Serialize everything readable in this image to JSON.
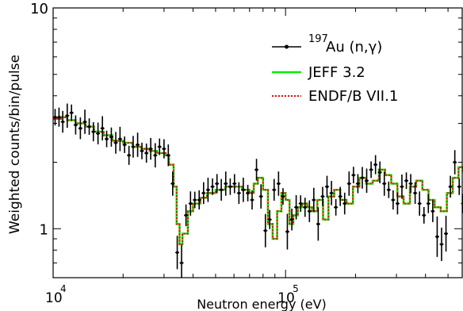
{
  "chart_data": {
    "type": "line",
    "title": "",
    "xlabel": "Neutron energy (eV)",
    "ylabel": "Weighted counts/bin/pulse",
    "x_scale": "log",
    "y_scale": "log",
    "xlim": [
      10000,
      580000
    ],
    "ylim": [
      0.6,
      10
    ],
    "x_tick_labels": [
      {
        "value": 10000,
        "base": "10",
        "exp": "4"
      },
      {
        "value": 100000,
        "base": "10",
        "exp": "5"
      }
    ],
    "y_tick_labels": [
      {
        "value": 1,
        "label": "1"
      },
      {
        "value": 10,
        "label": "10"
      }
    ],
    "legend": {
      "position": "top-right",
      "entries": [
        {
          "label_sup": "197",
          "label": "Au (n,γ)"
        },
        {
          "label": "JEFF 3.2"
        },
        {
          "label": "ENDF/B VII.1"
        }
      ]
    },
    "colors": {
      "data": "#000000",
      "jeff": "#00ee00",
      "endf": "#ff0000"
    },
    "series": [
      {
        "name": "197Au (n,γ)",
        "style": "points-with-error-bars",
        "x": [
          10200,
          10600,
          11000,
          11500,
          12000,
          12500,
          13100,
          13700,
          14300,
          14900,
          15600,
          16300,
          17000,
          17800,
          18600,
          19400,
          20300,
          21200,
          22100,
          23100,
          24100,
          25200,
          26300,
          27500,
          28700,
          30000,
          31300,
          32700,
          34200,
          35700,
          37300,
          39000,
          40700,
          42500,
          44400,
          46400,
          48500,
          50700,
          52900,
          55300,
          57800,
          60300,
          63000,
          65800,
          68800,
          71800,
          75000,
          78400,
          81900,
          85500,
          89300,
          93300,
          97500,
          101800,
          106400,
          111100,
          116100,
          121300,
          126700,
          132300,
          138200,
          144400,
          150800,
          157600,
          164600,
          171900,
          179600,
          187600,
          196000,
          204700,
          213900,
          223400,
          233400,
          243800,
          254600,
          266000,
          277900,
          290300,
          303200,
          316700,
          330900,
          345600,
          361000,
          377100,
          394000,
          411500,
          429900,
          449100,
          469100,
          490100,
          511900,
          534800,
          558600,
          580000
        ],
        "y": [
          3.2,
          3.2,
          3.05,
          3.25,
          3.35,
          2.95,
          2.85,
          3.05,
          2.9,
          2.75,
          2.7,
          2.85,
          2.55,
          2.6,
          2.45,
          2.55,
          2.4,
          2.15,
          2.35,
          2.4,
          2.25,
          2.2,
          2.3,
          2.15,
          2.35,
          2.3,
          2.15,
          1.6,
          0.78,
          0.7,
          1.15,
          1.3,
          1.35,
          1.35,
          1.45,
          1.5,
          1.55,
          1.6,
          1.5,
          1.6,
          1.55,
          1.6,
          1.45,
          1.5,
          1.45,
          1.35,
          1.85,
          1.4,
          0.98,
          1.1,
          1.5,
          1.6,
          1.4,
          0.97,
          1.1,
          1.25,
          1.3,
          1.25,
          1.2,
          1.35,
          1.05,
          1.4,
          1.55,
          1.45,
          1.25,
          1.4,
          1.3,
          1.6,
          1.75,
          1.6,
          1.7,
          1.65,
          1.85,
          1.95,
          1.8,
          1.6,
          1.5,
          1.35,
          1.3,
          1.55,
          1.65,
          1.6,
          1.45,
          1.3,
          1.15,
          1.3,
          1.2,
          0.92,
          0.85,
          0.95,
          1.55,
          2.0,
          1.55,
          1.3
        ]
      },
      {
        "name": "JEFF 3.2",
        "style": "step",
        "x": [
          10000,
          10800,
          11500,
          12500,
          13800,
          15000,
          16500,
          18000,
          20000,
          22000,
          24000,
          26000,
          28000,
          30500,
          31500,
          33000,
          34000,
          35000,
          36000,
          38000,
          40000,
          43000,
          46000,
          50000,
          55000,
          60000,
          65000,
          70000,
          73000,
          76000,
          80000,
          84000,
          88000,
          92000,
          96000,
          100000,
          104000,
          108000,
          113000,
          118000,
          124000,
          130000,
          137000,
          145000,
          153000,
          162000,
          172000,
          183000,
          195000,
          208000,
          222000,
          237000,
          252000,
          268000,
          285000,
          303000,
          322000,
          343000,
          365000,
          388000,
          412000,
          438000,
          465000,
          494000,
          524000,
          555000,
          580000
        ],
        "y": [
          3.15,
          3.2,
          3.1,
          3.0,
          2.9,
          2.75,
          2.65,
          2.5,
          2.45,
          2.35,
          2.3,
          2.25,
          2.2,
          2.15,
          1.95,
          1.55,
          1.05,
          0.85,
          0.95,
          1.2,
          1.3,
          1.38,
          1.45,
          1.5,
          1.55,
          1.55,
          1.5,
          1.45,
          1.6,
          1.7,
          1.5,
          1.05,
          0.9,
          1.2,
          1.45,
          1.35,
          1.05,
          1.15,
          1.25,
          1.3,
          1.25,
          1.2,
          1.35,
          1.1,
          1.4,
          1.5,
          1.35,
          1.3,
          1.55,
          1.7,
          1.6,
          1.65,
          1.85,
          1.75,
          1.6,
          1.4,
          1.3,
          1.55,
          1.65,
          1.5,
          1.35,
          1.25,
          1.2,
          1.45,
          1.7,
          1.9,
          1.8
        ]
      },
      {
        "name": "ENDF/B VII.1",
        "style": "dotted-step",
        "x": [
          10000,
          10800,
          11500,
          12500,
          13800,
          15000,
          16500,
          18000,
          20000,
          22000,
          24000,
          26000,
          28000,
          30500,
          31500,
          33000,
          34000,
          35000,
          36000,
          38000,
          40000,
          43000,
          46000,
          50000,
          55000,
          60000,
          65000,
          70000,
          73000,
          76000,
          80000,
          84000,
          88000,
          92000,
          96000,
          100000,
          104000,
          108000,
          113000,
          118000,
          124000,
          130000,
          137000,
          145000,
          153000,
          162000,
          172000,
          183000,
          195000,
          208000,
          222000,
          237000,
          252000,
          268000,
          285000,
          303000,
          322000,
          343000,
          365000,
          388000,
          412000,
          438000,
          465000,
          494000,
          524000,
          555000,
          580000
        ],
        "y": [
          3.15,
          3.2,
          3.1,
          3.0,
          2.9,
          2.75,
          2.65,
          2.5,
          2.45,
          2.35,
          2.3,
          2.25,
          2.2,
          2.15,
          1.95,
          1.55,
          1.05,
          0.85,
          0.95,
          1.2,
          1.3,
          1.38,
          1.45,
          1.5,
          1.55,
          1.55,
          1.5,
          1.45,
          1.6,
          1.7,
          1.5,
          1.05,
          0.9,
          1.2,
          1.45,
          1.35,
          1.05,
          1.15,
          1.25,
          1.3,
          1.25,
          1.2,
          1.35,
          1.1,
          1.4,
          1.5,
          1.35,
          1.3,
          1.55,
          1.7,
          1.6,
          1.65,
          1.85,
          1.75,
          1.6,
          1.4,
          1.3,
          1.55,
          1.65,
          1.5,
          1.35,
          1.25,
          1.2,
          1.45,
          1.7,
          1.9,
          1.8
        ]
      }
    ]
  }
}
